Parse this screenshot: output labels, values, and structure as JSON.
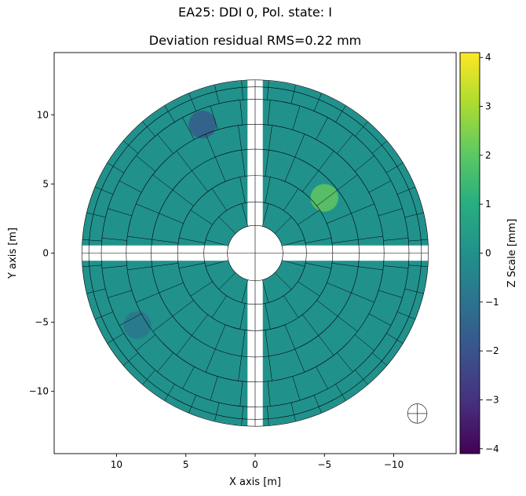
{
  "figure": {
    "suptitle": "EA25: DDI 0, Pol. state: I",
    "title": "Deviation residual RMS=0.22 mm"
  },
  "chart_data": {
    "type": "heatmap",
    "title": "Deviation residual RMS=0.22 mm",
    "xlabel": "X axis [m]",
    "ylabel": "Y axis [m]",
    "xlim": [
      14.5,
      -14.5
    ],
    "ylim": [
      -14.5,
      14.5
    ],
    "xticks": [
      10,
      5,
      0,
      -5,
      -10
    ],
    "xtick_labels": [
      "10",
      "5",
      "0",
      "−5",
      "−10"
    ],
    "yticks": [
      -10,
      -5,
      0,
      5,
      10
    ],
    "ytick_labels": [
      "−10",
      "−5",
      "0",
      "5",
      "10"
    ],
    "colorbar": {
      "label": "Z Scale [mm]",
      "colormap": "viridis",
      "range": [
        -4.1,
        4.1
      ],
      "ticks": [
        -4,
        -3,
        -2,
        -1,
        0,
        1,
        2,
        3,
        4
      ],
      "tick_labels": [
        "−4",
        "−3",
        "−2",
        "−1",
        "0",
        "1",
        "2",
        "3",
        "4"
      ]
    },
    "dish_radius_m": 12.5,
    "panel_ring_radii_m": [
      2.0,
      3.7,
      5.6,
      7.5,
      9.3,
      11.1,
      12.0
    ],
    "outer_circle_radius_m": 12.5,
    "uniform_surface_value_mm": 0.0,
    "notable_deviations": [
      {
        "x": -5.0,
        "y": 4.0,
        "value_mm": 2.2
      },
      {
        "x": 3.8,
        "y": 9.3,
        "value_mm": -2.0
      },
      {
        "x": 8.5,
        "y": -5.2,
        "value_mm": -1.0
      }
    ]
  }
}
